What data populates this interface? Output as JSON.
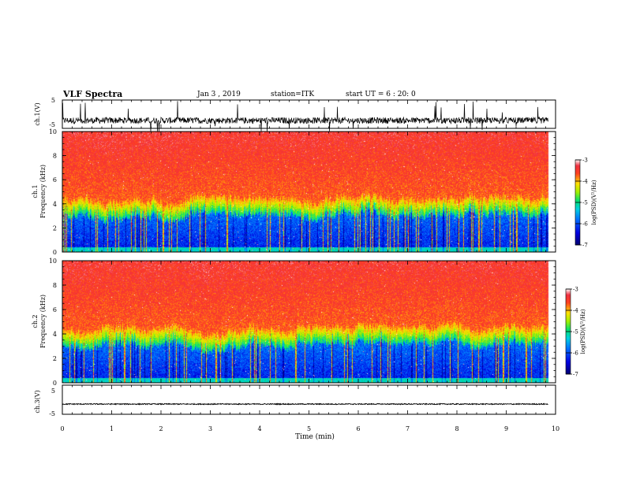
{
  "header": {
    "title": "VLF Spectra",
    "date": "Jan 3 , 2019",
    "station": "station=ITK",
    "start": "start UT = 6 : 20: 0"
  },
  "chart_data": [
    {
      "type": "line",
      "panel": "ch1-waveform",
      "ylabel": "ch.1(V)",
      "xlim": [
        0,
        10
      ],
      "ylim": [
        -5,
        5
      ],
      "yticks": [
        "5",
        "-5"
      ],
      "trace_baseline": -2.2,
      "trace_end_min": 9.85
    },
    {
      "type": "heatmap",
      "panel": "ch1-spectrogram",
      "ylabel": "ch.1\nFrequency (kHz)",
      "xlim": [
        0,
        10
      ],
      "ylim": [
        0,
        10
      ],
      "yticks": [
        "0",
        "2",
        "4",
        "6",
        "8",
        "10"
      ],
      "data_end_min": 9.85,
      "colorbar": {
        "label": "log(PSD)(V²/Hz)",
        "range": [
          -7,
          -3
        ],
        "ticks": [
          "-3",
          "-4",
          "-5",
          "-6",
          "-7"
        ]
      }
    },
    {
      "type": "heatmap",
      "panel": "ch2-spectrogram",
      "ylabel": "ch.2\nFrequency (kHz)",
      "xlim": [
        0,
        10
      ],
      "ylim": [
        0,
        10
      ],
      "yticks": [
        "0",
        "2",
        "4",
        "6",
        "8",
        "10"
      ],
      "data_end_min": 9.85,
      "colorbar": {
        "label": "log(PSD)(V²/Hz)",
        "range": [
          -7,
          -3
        ],
        "ticks": [
          "-3",
          "-4",
          "-5",
          "-6",
          "-7"
        ]
      }
    },
    {
      "type": "line",
      "panel": "ch3-waveform",
      "ylabel": "ch.3(V)",
      "xlim": [
        0,
        10
      ],
      "ylim": [
        -5,
        5
      ],
      "yticks": [
        "5",
        "-5"
      ],
      "trace_baseline": -1.5,
      "trace_end_min": 9.85,
      "xlabel": "Time (min)",
      "xticks": [
        "0",
        "1",
        "2",
        "3",
        "4",
        "5",
        "6",
        "7",
        "8",
        "9",
        "10"
      ]
    }
  ]
}
